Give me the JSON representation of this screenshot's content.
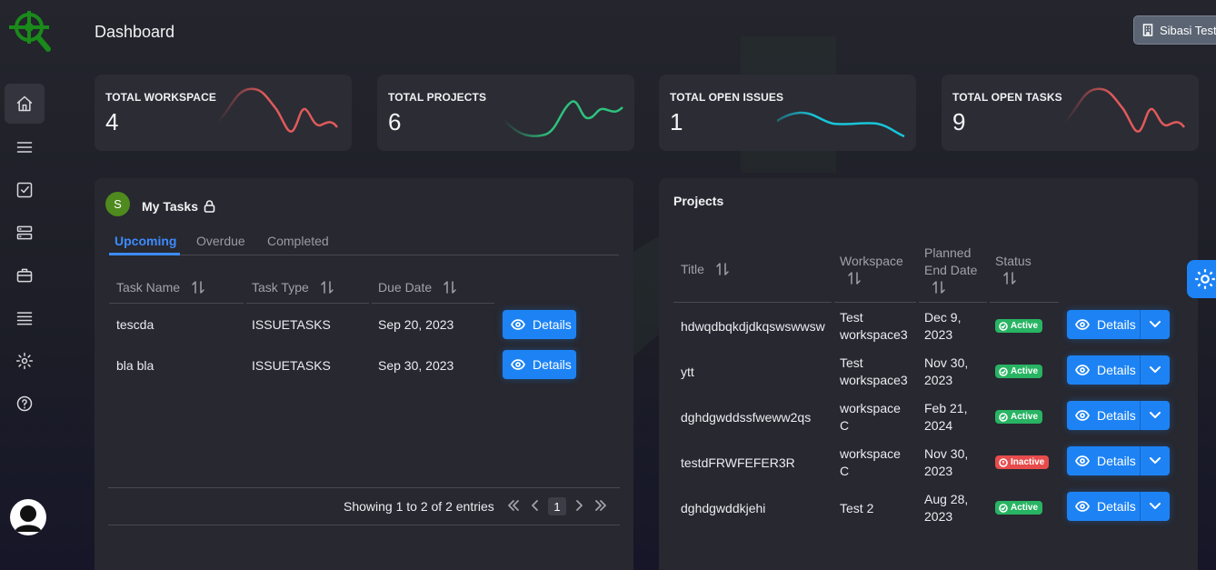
{
  "header": {
    "title": "Dashboard",
    "user_name": "Sibasi Test"
  },
  "sidebar": {
    "items": [
      {
        "icon": "home-icon"
      },
      {
        "icon": "menu-icon"
      },
      {
        "icon": "checkbox-icon"
      },
      {
        "icon": "server-icon"
      },
      {
        "icon": "briefcase-icon"
      },
      {
        "icon": "list-icon"
      },
      {
        "icon": "gear-icon"
      },
      {
        "icon": "help-icon"
      }
    ]
  },
  "stats": [
    {
      "label": "TOTAL WORKSPACE",
      "value": "4"
    },
    {
      "label": "TOTAL PROJECTS",
      "value": "6"
    },
    {
      "label": "TOTAL OPEN ISSUES",
      "value": "1"
    },
    {
      "label": "TOTAL OPEN TASKS",
      "value": "9"
    }
  ],
  "my_tasks": {
    "avatar_letter": "S",
    "title": "My Tasks",
    "tabs": [
      "Upcoming",
      "Overdue",
      "Completed"
    ],
    "active_tab": "Upcoming",
    "columns": [
      "Task Name",
      "Task Type",
      "Due Date"
    ],
    "rows": [
      {
        "name": "tescda",
        "type": "ISSUETASKS",
        "due": "Sep 20, 2023",
        "action": "Details"
      },
      {
        "name": "bla bla",
        "type": "ISSUETASKS",
        "due": "Sep 30, 2023",
        "action": "Details"
      }
    ],
    "pager": {
      "summary": "Showing 1 to 2 of 2 entries",
      "current_page": "1"
    }
  },
  "projects": {
    "title": "Projects",
    "columns": {
      "title": "Title",
      "workspace": "Workspace",
      "planned_end_1": "Planned",
      "planned_end_2": "End Date",
      "status": "Status"
    },
    "rows": [
      {
        "title": "hdwqdbqkdjdkqswswwsw",
        "ws1": "Test",
        "ws2": "workspace3",
        "d1": "Dec 9,",
        "d2": "2023",
        "status": "Active",
        "action": "Details"
      },
      {
        "title": "ytt",
        "ws1": "Test",
        "ws2": "workspace3",
        "d1": "Nov 30,",
        "d2": "2023",
        "status": "Active",
        "action": "Details"
      },
      {
        "title": "dghdgwddssfweww2qs",
        "ws1": "workspace",
        "ws2": "C",
        "d1": "Feb 21,",
        "d2": "2024",
        "status": "Active",
        "action": "Details"
      },
      {
        "title": "testdFRWFEFER3R",
        "ws1": "workspace",
        "ws2": "C",
        "d1": "Nov 30,",
        "d2": "2023",
        "status": "Inactive",
        "action": "Details"
      },
      {
        "title": "dghdgwddkjehi",
        "ws1": "Test 2",
        "ws2": "",
        "d1": "Aug 28,",
        "d2": "2023",
        "status": "Active",
        "action": "Details"
      }
    ]
  },
  "colors": {
    "accent": "#1d83f5",
    "active_badge": "#28b463",
    "inactive_badge": "#e74c4c",
    "spark_red": "#e05a5a",
    "spark_green": "#2ec27e",
    "spark_teal": "#18c5d8"
  }
}
